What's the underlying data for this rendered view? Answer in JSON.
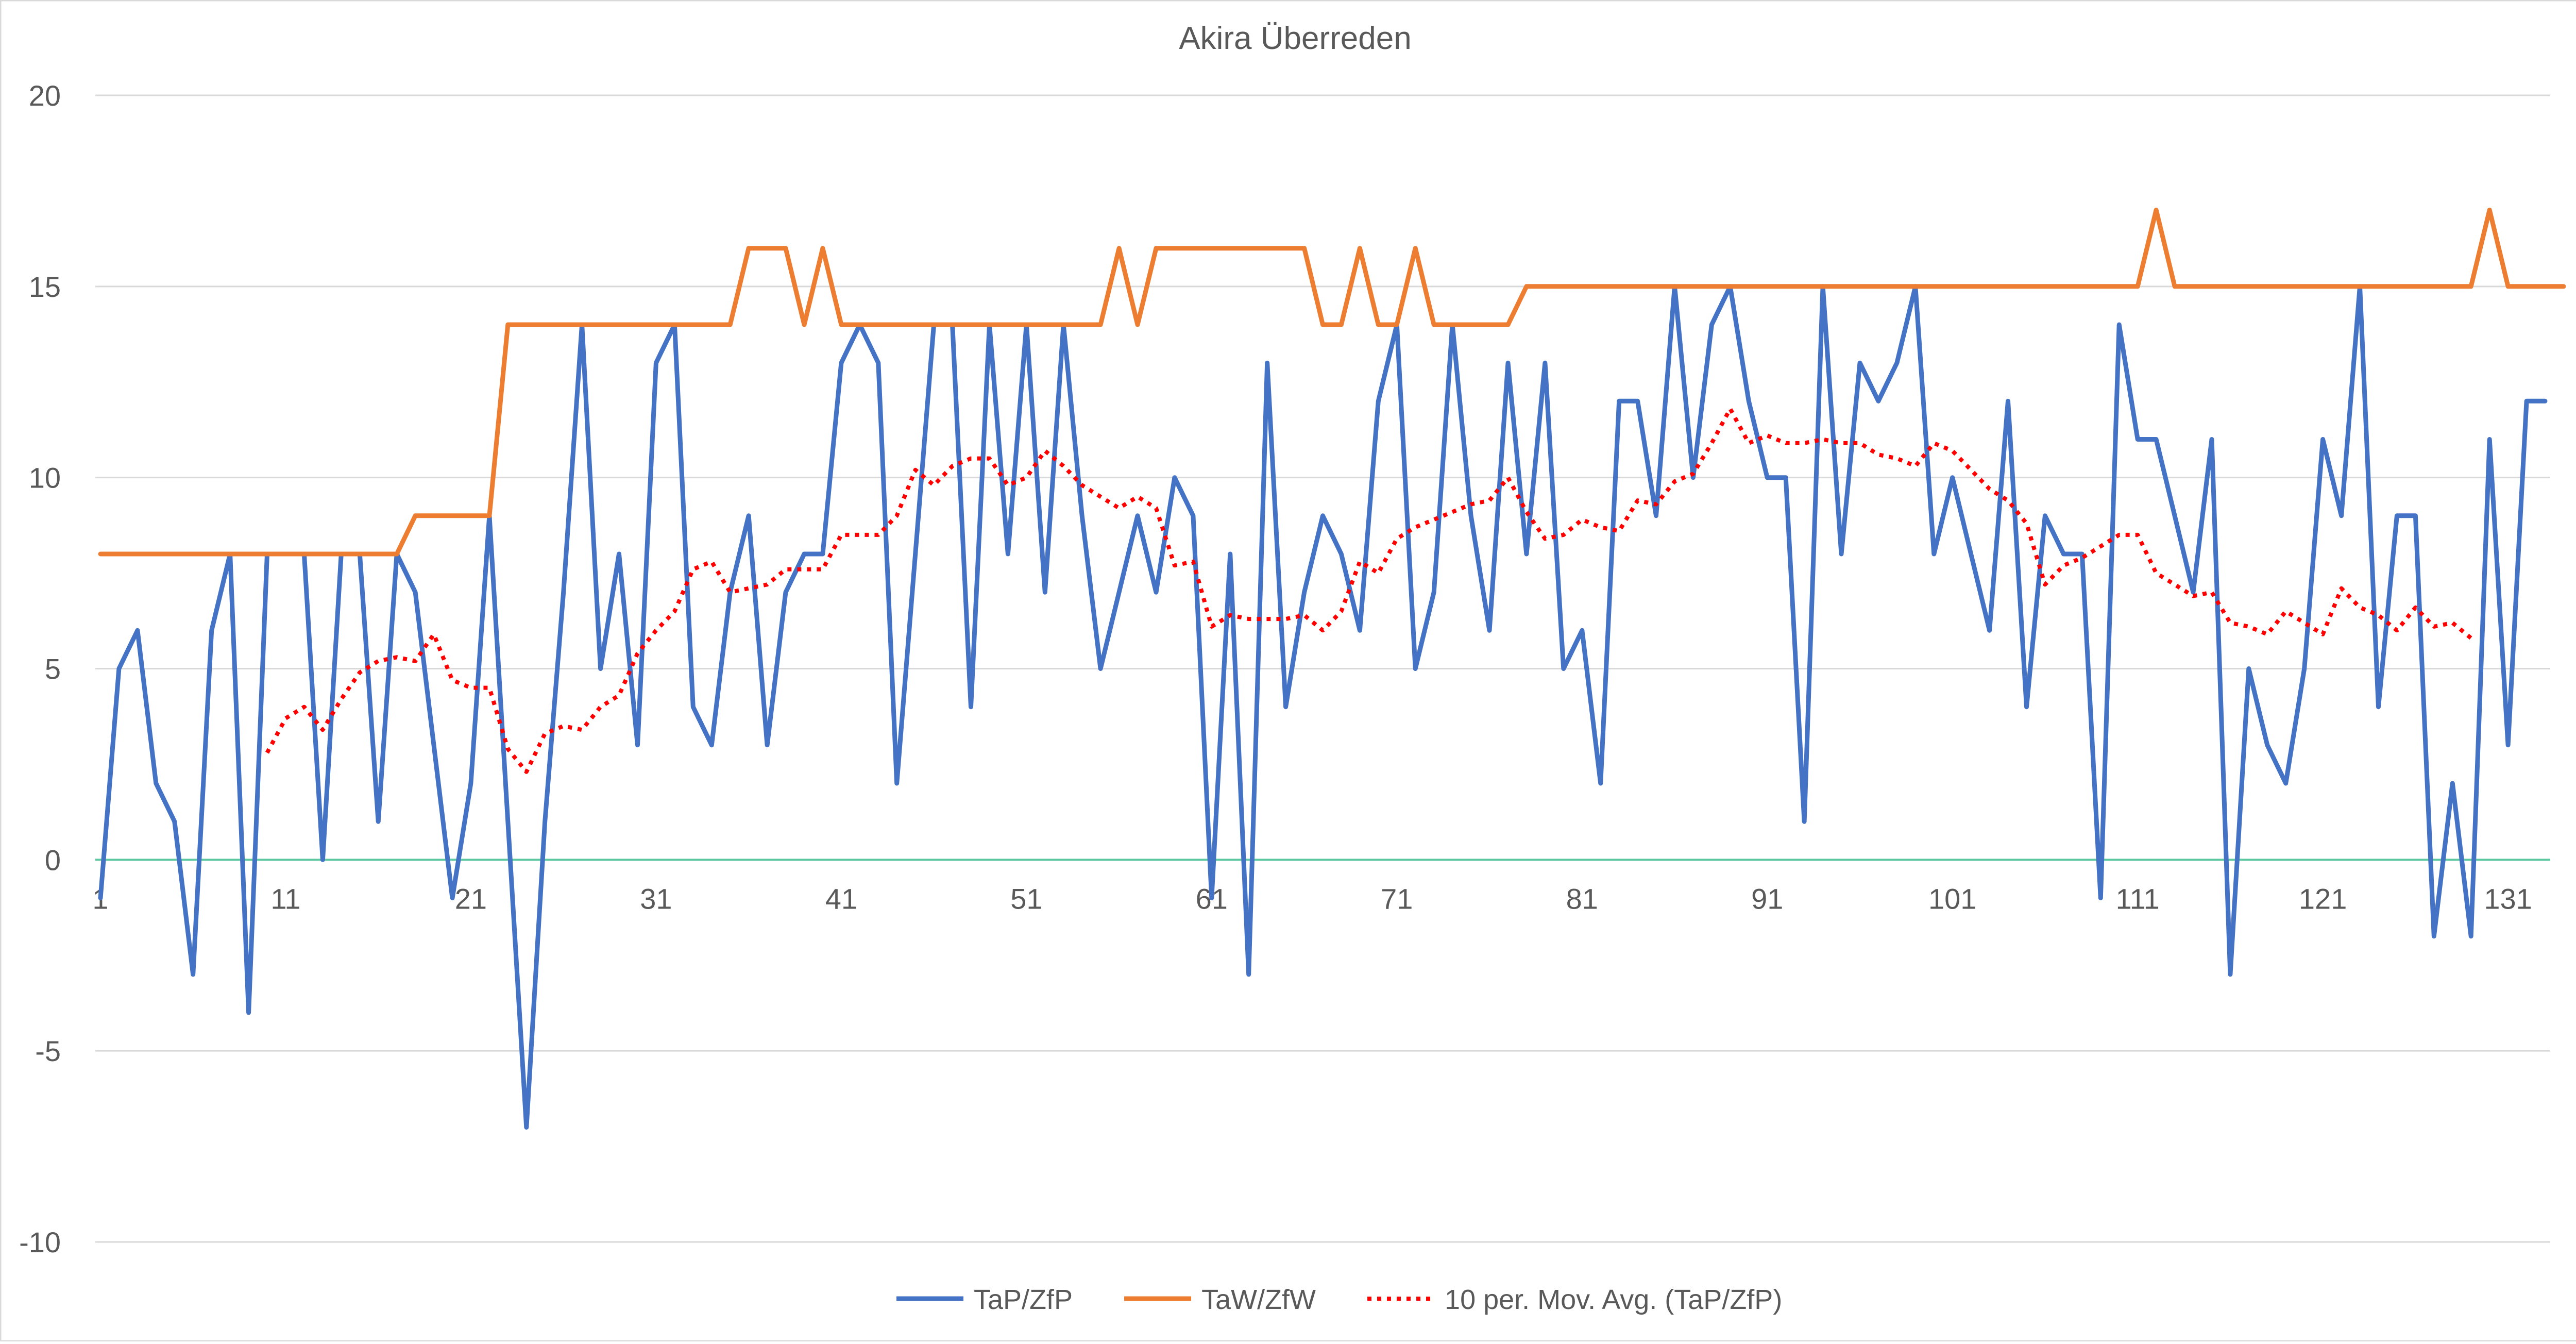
{
  "chart_data": {
    "type": "line",
    "title": "Akira Überreden",
    "ylim": [
      -10,
      20
    ],
    "y_ticks": [
      -10,
      -5,
      0,
      5,
      10,
      15,
      20
    ],
    "x_tick_labels": [
      "1",
      "11",
      "21",
      "31",
      "41",
      "51",
      "61",
      "71",
      "81",
      "91",
      "101",
      "111",
      "121",
      "131"
    ],
    "x_tick_positions": [
      1,
      11,
      21,
      31,
      41,
      51,
      61,
      71,
      81,
      91,
      101,
      111,
      121,
      131
    ],
    "x_range": [
      1,
      133
    ],
    "grid": true,
    "legend_position": "bottom",
    "series": [
      {
        "name": "TaP/ZfP",
        "color": "#4472c4",
        "style": "solid",
        "values": [
          -1,
          5,
          6,
          2,
          1,
          -3,
          6,
          8,
          -4,
          8,
          8,
          8,
          0,
          8,
          8,
          1,
          8,
          7,
          3,
          -1,
          2,
          9,
          1,
          -7,
          1,
          7,
          14,
          5,
          8,
          3,
          13,
          14,
          4,
          3,
          7,
          9,
          3,
          7,
          8,
          8,
          13,
          14,
          13,
          2,
          8,
          14,
          14,
          4,
          14,
          8,
          14,
          7,
          14,
          9,
          5,
          7,
          9,
          7,
          10,
          9,
          -1,
          8,
          -3,
          13,
          4,
          7,
          9,
          8,
          6,
          12,
          14,
          5,
          7,
          14,
          9,
          6,
          13,
          8,
          13,
          5,
          6,
          2,
          12,
          12,
          9,
          15,
          10,
          14,
          15,
          12,
          10,
          10,
          1,
          15,
          8,
          13,
          12,
          13,
          15,
          8,
          10,
          8,
          6,
          12,
          4,
          9,
          8,
          8,
          -1,
          14,
          11,
          11,
          9,
          7,
          11,
          -3,
          5,
          3,
          2,
          5,
          11,
          9,
          15,
          4,
          9,
          9,
          -2,
          2,
          -2,
          11,
          3,
          12,
          12
        ]
      },
      {
        "name": "TaW/ZfW",
        "color": "#ed7d31",
        "style": "solid",
        "values": [
          8,
          8,
          8,
          8,
          8,
          8,
          8,
          8,
          8,
          8,
          8,
          8,
          8,
          8,
          8,
          8,
          8,
          9,
          9,
          9,
          9,
          9,
          14,
          14,
          14,
          14,
          14,
          14,
          14,
          14,
          14,
          14,
          14,
          14,
          14,
          16,
          16,
          16,
          14,
          16,
          14,
          14,
          14,
          14,
          14,
          14,
          14,
          14,
          14,
          14,
          14,
          14,
          14,
          14,
          14,
          16,
          14,
          16,
          16,
          16,
          16,
          16,
          16,
          16,
          16,
          16,
          14,
          14,
          16,
          14,
          14,
          16,
          14,
          14,
          14,
          14,
          14,
          15,
          15,
          15,
          15,
          15,
          15,
          15,
          15,
          15,
          15,
          15,
          15,
          15,
          15,
          15,
          15,
          15,
          15,
          15,
          15,
          15,
          15,
          15,
          15,
          15,
          15,
          15,
          15,
          15,
          15,
          15,
          15,
          15,
          15,
          17,
          15,
          15,
          15,
          15,
          15,
          15,
          15,
          15,
          15,
          15,
          15,
          15,
          15,
          15,
          15,
          15,
          15,
          17,
          15,
          15,
          15,
          15
        ]
      },
      {
        "name": "10 per. Mov. Avg. (TaP/ZfP)",
        "color": "#ff0000",
        "style": "dotted",
        "values": [
          null,
          null,
          null,
          null,
          null,
          null,
          null,
          null,
          null,
          2.8,
          3.7,
          4.0,
          3.4,
          4.2,
          4.9,
          5.2,
          5.3,
          5.2,
          5.9,
          4.7,
          4.5,
          4.5,
          2.9,
          2.3,
          3.3,
          3.5,
          3.4,
          4.0,
          4.3,
          5.4,
          6.0,
          6.5,
          7.6,
          7.8,
          7.0,
          7.1,
          7.2,
          7.6,
          7.6,
          7.6,
          8.5,
          8.5,
          8.5,
          9.0,
          10.2,
          9.8,
          10.3,
          10.5,
          10.5,
          9.8,
          10.0,
          10.7,
          10.3,
          9.8,
          9.5,
          9.2,
          9.5,
          9.2,
          7.7,
          7.8,
          6.1,
          6.4,
          6.3,
          6.3,
          6.3,
          6.4,
          6.0,
          6.5,
          7.8,
          7.5,
          8.4,
          8.7,
          8.9,
          9.1,
          9.3,
          9.4,
          10.0,
          9.1,
          8.4,
          8.5,
          8.9,
          8.7,
          8.6,
          9.4,
          9.3,
          9.9,
          10.1,
          10.9,
          11.8,
          10.9,
          11.1,
          10.9,
          10.9,
          11.0,
          10.9,
          10.9,
          10.6,
          10.5,
          10.3,
          10.9,
          10.7,
          10.2,
          9.7,
          9.4,
          8.8,
          7.2,
          7.7,
          7.9,
          8.2,
          8.5,
          8.5,
          7.5,
          7.2,
          6.9,
          7.0,
          6.2,
          6.1,
          5.9,
          6.5,
          6.2,
          5.9,
          7.1,
          6.6,
          6.4,
          6.0,
          6.6,
          6.1,
          6.2,
          5.8
        ]
      }
    ],
    "baseline_color": "#5cc9a0"
  }
}
